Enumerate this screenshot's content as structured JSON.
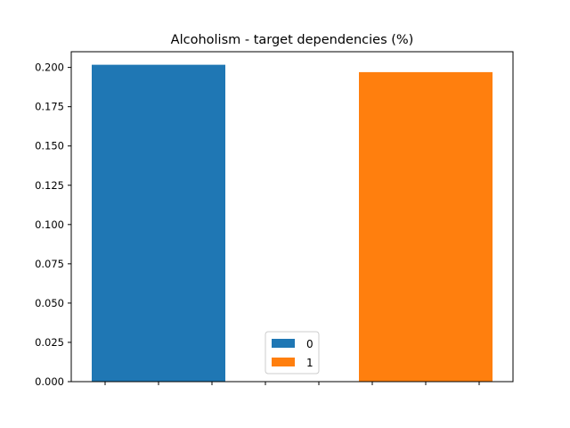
{
  "chart_data": {
    "type": "bar",
    "title": "Alcoholism - target dependencies (%)",
    "xlabel": "",
    "ylabel": "",
    "ylim": [
      0,
      0.21
    ],
    "yticks": [
      "0.000",
      "0.025",
      "0.050",
      "0.075",
      "0.100",
      "0.125",
      "0.150",
      "0.175",
      "0.200"
    ],
    "x_tick_count": 8,
    "grid": false,
    "legend_position": "lower-center",
    "series": [
      {
        "name": "0",
        "value": 0.2017,
        "color": "#1f77b4"
      },
      {
        "name": "1",
        "value": 0.197,
        "color": "#ff7f0e"
      }
    ]
  }
}
